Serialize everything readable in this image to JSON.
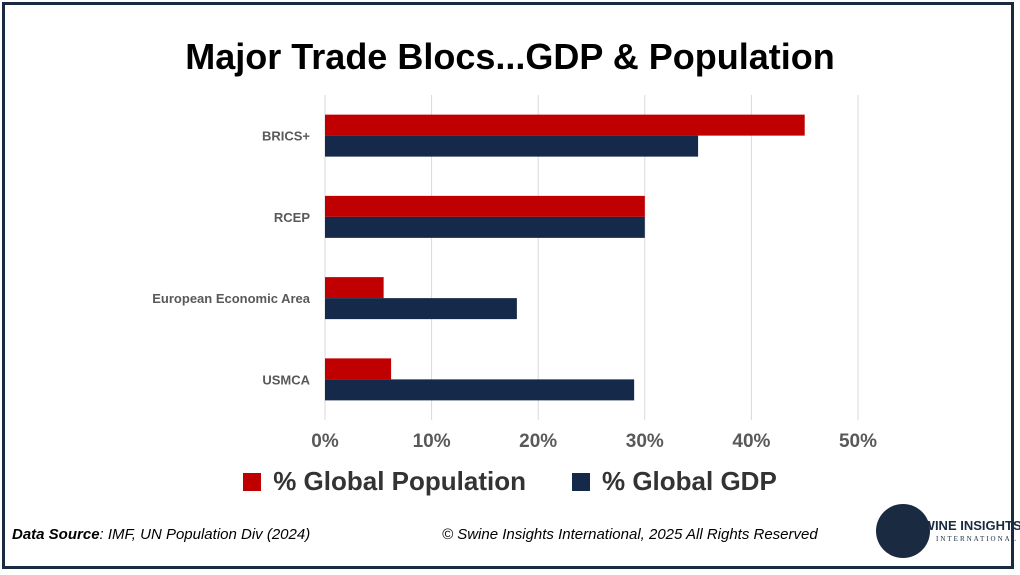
{
  "title": "Major Trade Blocs...GDP & Population",
  "colors": {
    "population": "#c00000",
    "gdp": "#15294a",
    "frame": "#1a2a40"
  },
  "chart_data": {
    "type": "bar",
    "orientation": "horizontal",
    "categories": [
      "BRICS+",
      "RCEP",
      "European Economic Area",
      "USMCA"
    ],
    "series": [
      {
        "name": "% Global Population",
        "values": [
          45,
          30,
          5.5,
          6.2
        ]
      },
      {
        "name": "% Global GDP",
        "values": [
          35,
          30,
          18,
          29
        ]
      }
    ],
    "xlim": [
      0,
      50
    ],
    "x_ticks": [
      "0%",
      "10%",
      "20%",
      "30%",
      "40%",
      "50%"
    ],
    "grid": true,
    "legend_position": "bottom"
  },
  "footer": {
    "source_label": "Data Source",
    "source_text": ": IMF, UN Population Div (2024)",
    "copyright": "© Swine Insights International, 2025 All Rights Reserved"
  },
  "logo": {
    "name": "SWINE INSIGHTS",
    "sub": "INTERNATIONAL"
  }
}
